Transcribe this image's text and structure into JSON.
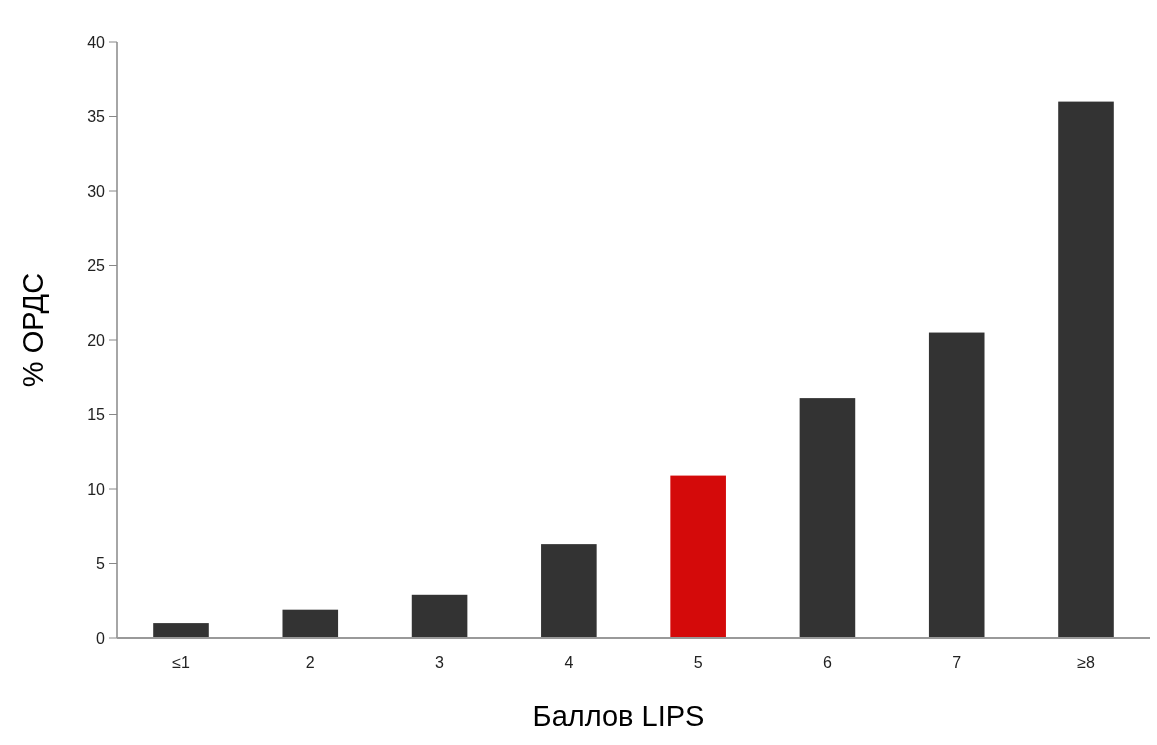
{
  "chart_data": {
    "type": "bar",
    "xlabel": "Баллов LIPS",
    "ylabel": "% ОРДС",
    "categories": [
      "≤1",
      "2",
      "3",
      "4",
      "5",
      "6",
      "7",
      "≥8"
    ],
    "values": [
      1.0,
      1.9,
      2.9,
      6.3,
      10.9,
      16.1,
      20.5,
      36.0
    ],
    "colors": [
      "#333333",
      "#333333",
      "#333333",
      "#333333",
      "#d40a0a",
      "#333333",
      "#333333",
      "#333333"
    ],
    "ylim": [
      0,
      40
    ],
    "yticks": [
      0,
      5,
      10,
      15,
      20,
      25,
      30,
      35,
      40
    ],
    "grid": false
  }
}
